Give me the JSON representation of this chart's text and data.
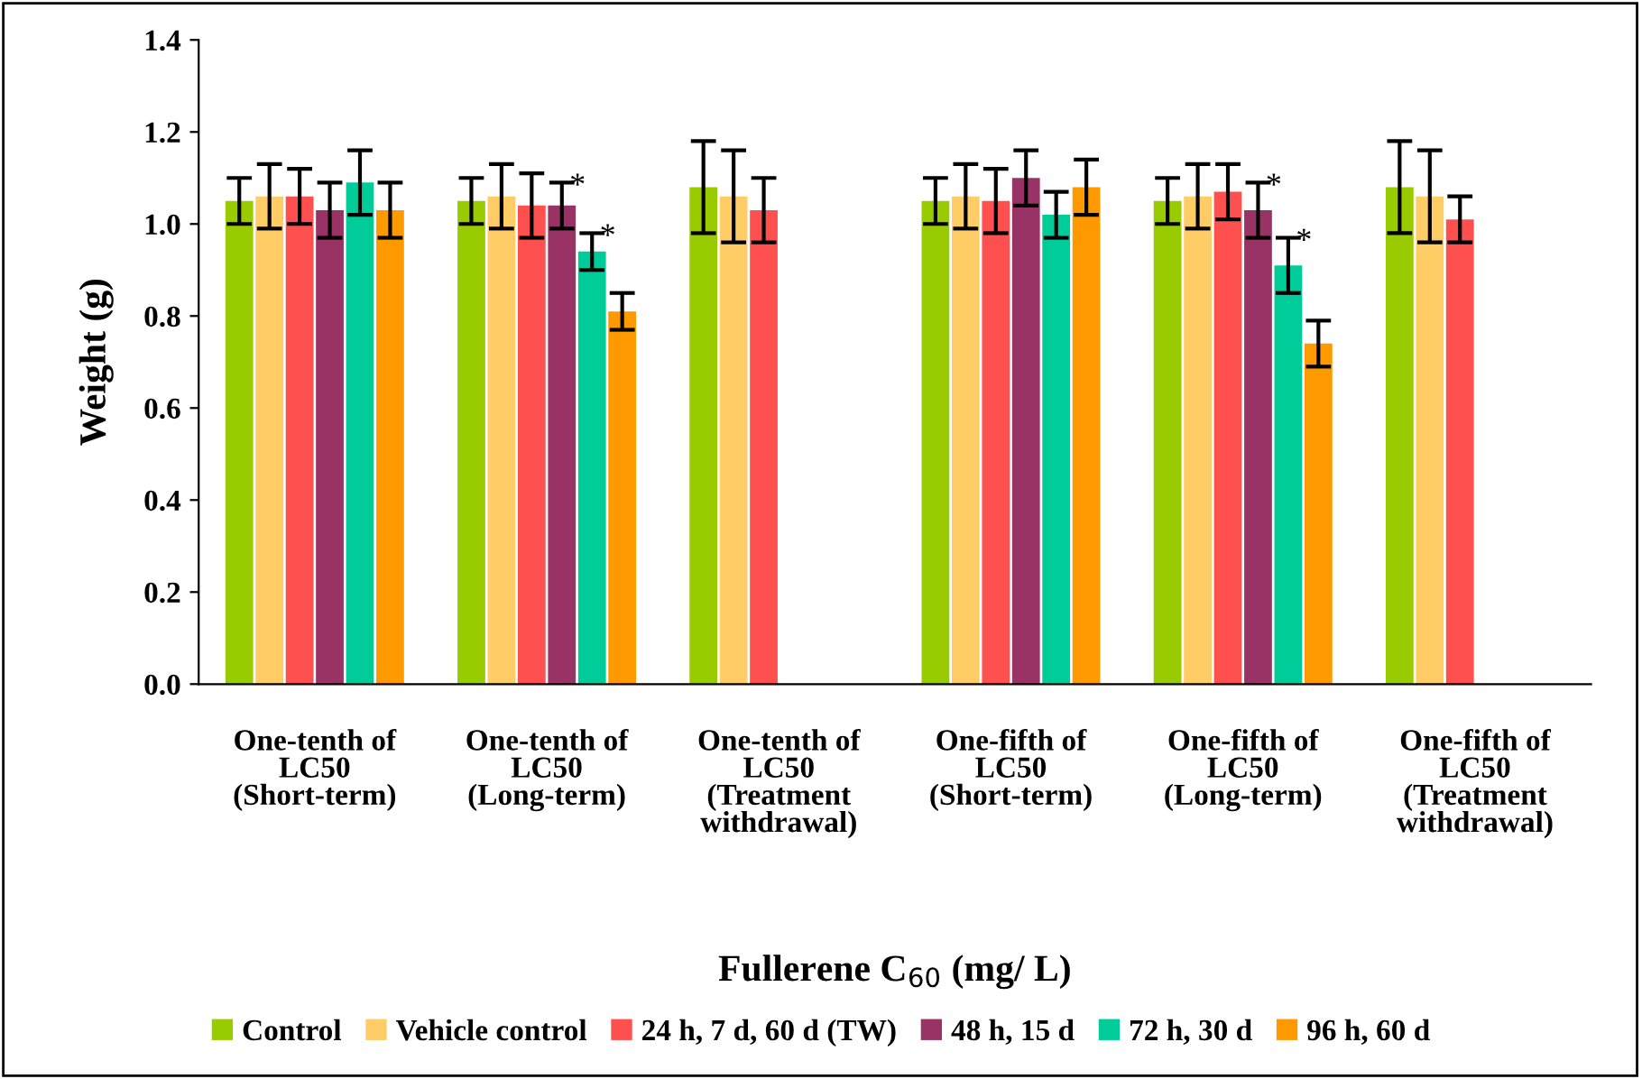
{
  "chart_data": {
    "type": "bar",
    "xlabel": "Fullerene C$_{60}$ (mg/ L)",
    "ylabel": "Weight (g)",
    "categories": [
      "One-tenth of LC50 (Short-term)",
      "One-tenth of LC50 (Long-term)",
      "One-tenth of LC50 (Treatment withdrawal)",
      "One-fifth of LC50 (Short-term)",
      "One-fifth of LC50 (Long-term)",
      "One-fifth of LC50 (Treatment withdrawal)"
    ],
    "series": [
      {
        "name": "Control",
        "color": "#99cc00",
        "values": [
          1.05,
          1.05,
          1.08,
          1.05,
          1.05,
          1.08
        ],
        "errors": [
          0.05,
          0.05,
          0.1,
          0.05,
          0.05,
          0.1
        ]
      },
      {
        "name": "Vehicle control",
        "color": "#ffcc66",
        "values": [
          1.06,
          1.06,
          1.06,
          1.06,
          1.06,
          1.06
        ],
        "errors": [
          0.07,
          0.07,
          0.1,
          0.07,
          0.07,
          0.1
        ]
      },
      {
        "name": "24 h, 7 d, 60 d (TW)",
        "color": "#ff5050",
        "values": [
          1.06,
          1.04,
          1.03,
          1.05,
          1.07,
          1.01
        ],
        "errors": [
          0.06,
          0.07,
          0.07,
          0.07,
          0.06,
          0.05
        ]
      },
      {
        "name": "48 h, 15 d",
        "color": "#993366",
        "values": [
          1.03,
          1.04,
          null,
          1.1,
          1.03,
          null
        ],
        "errors": [
          0.06,
          0.05,
          null,
          0.06,
          0.06,
          null
        ]
      },
      {
        "name": "72 h, 30 d",
        "color": "#00cc99",
        "values": [
          1.09,
          0.94,
          null,
          1.02,
          0.91,
          null
        ],
        "errors": [
          0.07,
          0.04,
          null,
          0.05,
          0.06,
          null
        ]
      },
      {
        "name": "96 h, 60 d",
        "color": "#ff9900",
        "values": [
          1.03,
          0.81,
          null,
          1.08,
          0.74,
          null
        ],
        "errors": [
          0.06,
          0.04,
          null,
          0.06,
          0.05,
          null
        ]
      }
    ],
    "ylim": [
      0,
      1.4
    ],
    "yticks": [
      {
        "value": 0,
        "label": "0.0"
      },
      {
        "value": 0.2,
        "label": "0.2"
      },
      {
        "value": 0.4,
        "label": "0.4"
      },
      {
        "value": 0.6,
        "label": "0.6"
      },
      {
        "value": 0.8,
        "label": "0.8"
      },
      {
        "value": 1.0,
        "label": "1.0"
      },
      {
        "value": 1.2,
        "label": "1.2"
      },
      {
        "value": 1.4,
        "label": "1.4"
      }
    ],
    "annotations": [
      {
        "text": "*",
        "x": "One-tenth of LC50 (Long-term)",
        "y": 1.08
      },
      {
        "text": "*",
        "x": "One-tenth of LC50 (Long-term)",
        "y": 0.97
      },
      {
        "text": "*",
        "x": "One-fifth of LC50 (Long-term)",
        "y": 1.08
      },
      {
        "text": "*",
        "x": "One-fifth of LC50 (Long-term)",
        "y": 0.96
      }
    ],
    "grid": false,
    "legend": "bottom"
  }
}
